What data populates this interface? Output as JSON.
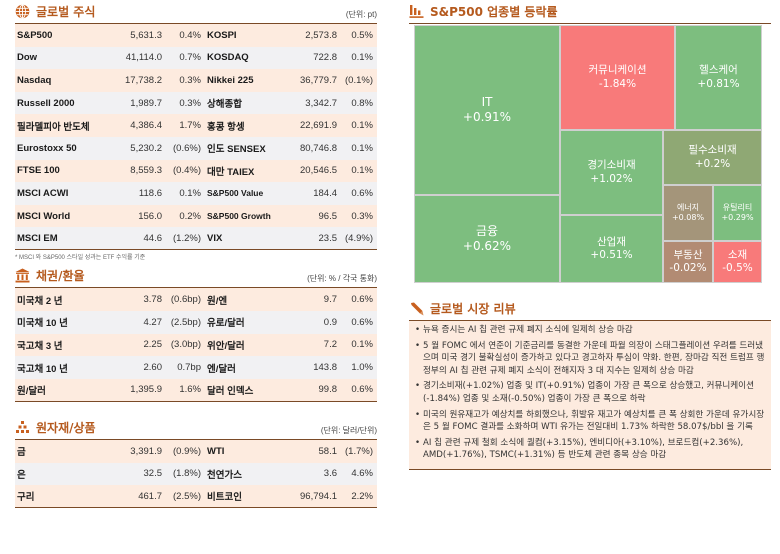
{
  "global_stocks": {
    "title": "글로벌 주식",
    "unit": "(단위: pt)",
    "icon": "globe-icon",
    "rows": [
      {
        "name": "S&P500",
        "value": "5,631.3",
        "change": "0.4%",
        "name2": "KOSPI",
        "value2": "2,573.8",
        "change2": "0.5%"
      },
      {
        "name": "Dow",
        "value": "41,114.0",
        "change": "0.7%",
        "name2": "KOSDAQ",
        "value2": "722.8",
        "change2": "0.1%"
      },
      {
        "name": "Nasdaq",
        "value": "17,738.2",
        "change": "0.3%",
        "name2": "Nikkei 225",
        "value2": "36,779.7",
        "change2": "(0.1%)"
      },
      {
        "name": "Russell 2000",
        "value": "1,989.7",
        "change": "0.3%",
        "name2": "상해종합",
        "value2": "3,342.7",
        "change2": "0.8%"
      },
      {
        "name": "필라델피아 반도체",
        "value": "4,386.4",
        "change": "1.7%",
        "name2": "홍콩 항셍",
        "value2": "22,691.9",
        "change2": "0.1%"
      },
      {
        "name": "Eurostoxx 50",
        "value": "5,230.2",
        "change": "(0.6%)",
        "name2": "인도 SENSEX",
        "value2": "80,746.8",
        "change2": "0.1%"
      },
      {
        "name": "FTSE 100",
        "value": "8,559.3",
        "change": "(0.4%)",
        "name2": "대만 TAIEX",
        "value2": "20,546.5",
        "change2": "0.1%"
      },
      {
        "name": "MSCI ACWI",
        "value": "118.6",
        "change": "0.1%",
        "name2": "S&P500 Value",
        "value2": "184.4",
        "change2": "0.6%"
      },
      {
        "name": "MSCI World",
        "value": "156.0",
        "change": "0.2%",
        "name2": "S&P500 Growth",
        "value2": "96.5",
        "change2": "0.3%"
      },
      {
        "name": "MSCI EM",
        "value": "44.6",
        "change": "(1.2%)",
        "name2": "VIX",
        "value2": "23.5",
        "change2": "(4.9%)"
      }
    ],
    "note": "* MSCI 와 S&P500 스타일 성과는 ETF 수익률 기준"
  },
  "bonds_fx": {
    "title": "채권/환율",
    "unit": "(단위: % / 각국 통화)",
    "icon": "bank-icon",
    "rows": [
      {
        "name": "미국채 2 년",
        "value": "3.78",
        "change": "(0.6bp)",
        "name2": "원/엔",
        "value2": "9.7",
        "change2": "0.6%"
      },
      {
        "name": "미국채 10 년",
        "value": "4.27",
        "change": "(2.5bp)",
        "name2": "유로/달러",
        "value2": "0.9",
        "change2": "0.6%"
      },
      {
        "name": "국고채 3 년",
        "value": "2.25",
        "change": "(3.0bp)",
        "name2": "위안/달러",
        "value2": "7.2",
        "change2": "0.1%"
      },
      {
        "name": "국고채 10 년",
        "value": "2.60",
        "change": "0.7bp",
        "name2": "엔/달러",
        "value2": "143.8",
        "change2": "1.0%"
      },
      {
        "name": "원/달러",
        "value": "1,395.9",
        "change": "1.6%",
        "name2": "달러 인덱스",
        "value2": "99.8",
        "change2": "0.6%"
      }
    ]
  },
  "commodities": {
    "title": "원자재/상품",
    "unit": "(단위: 달러/단위)",
    "icon": "gold-bars-icon",
    "rows": [
      {
        "name": "금",
        "value": "3,391.9",
        "change": "(0.9%)",
        "name2": "WTI",
        "value2": "58.1",
        "change2": "(1.7%)"
      },
      {
        "name": "은",
        "value": "32.5",
        "change": "(1.8%)",
        "name2": "천연가스",
        "value2": "3.6",
        "change2": "4.6%"
      },
      {
        "name": "구리",
        "value": "461.7",
        "change": "(2.5%)",
        "name2": "비트코인",
        "value2": "96,794.1",
        "change2": "2.2%"
      }
    ]
  },
  "sector_map": {
    "title": "S&P500 업종별 등락률",
    "icon": "bar-chart-icon",
    "colors": {
      "up": "#7dbe7f",
      "down": "#f87a7a",
      "flat_up": "#8fa874",
      "flat": "#a4957a",
      "flat_down": "#b28b73"
    },
    "sectors": [
      {
        "name": "IT",
        "change": "+0.91%"
      },
      {
        "name": "커뮤니케이션",
        "change": "-1.84%"
      },
      {
        "name": "헬스케어",
        "change": "+0.81%"
      },
      {
        "name": "금융",
        "change": "+0.62%"
      },
      {
        "name": "경기소비재",
        "change": "+1.02%"
      },
      {
        "name": "필수소비재",
        "change": "+0.2%"
      },
      {
        "name": "산업재",
        "change": "+0.51%"
      },
      {
        "name": "에너지",
        "change": "+0.08%"
      },
      {
        "name": "유틸리티",
        "change": "+0.29%"
      },
      {
        "name": "부동산",
        "change": "-0.02%"
      },
      {
        "name": "소재",
        "change": "-0.5%"
      }
    ]
  },
  "review": {
    "title": "글로벌 시장 리뷰",
    "icon": "pencil-icon",
    "bullets": [
      "뉴욕 증시는 AI 칩 관련 규제 폐지 소식에 일제히 상승 마감",
      "5 월 FOMC 에서 연준이 기준금리를 동결한 가운데 파월 의장이 스태그플레이션 우려를 드러냈으며 미국 경기 불확실성이 증가하고 있다고 경고하자 투심이 약화. 한편, 장마감 직전 트럼프 행정부의 AI 칩 관련 규제 폐지 소식이 전해지자 3 대 지수는 일제히 상승 마감",
      "경기소비재(+1.02%) 업종 및 IT(+0.91%) 업종이 가장 큰 폭으로 상승했고, 커뮤니케이션(-1.84%) 업종 및 소재(-0.50%) 업종이 가장 큰 폭으로 하락",
      "미국의 원유재고가 예상치를 하회했으나, 휘발유 재고가 예상치를 큰 폭 상회한 가운데 유가시장은 5 월 FOMC 결과를 소화하며 WTI 유가는 전일대비 1.73% 하락한 58.07$/bbl 을 기록",
      "AI 칩 관련 규제 철회 소식에 퀄컴(+3.15%), 엔비디아(+3.10%), 브로드컴(+2.36%), AMD(+1.76%), TSMC(+1.31%) 등 반도체 관련 종목 상승 마감"
    ]
  }
}
